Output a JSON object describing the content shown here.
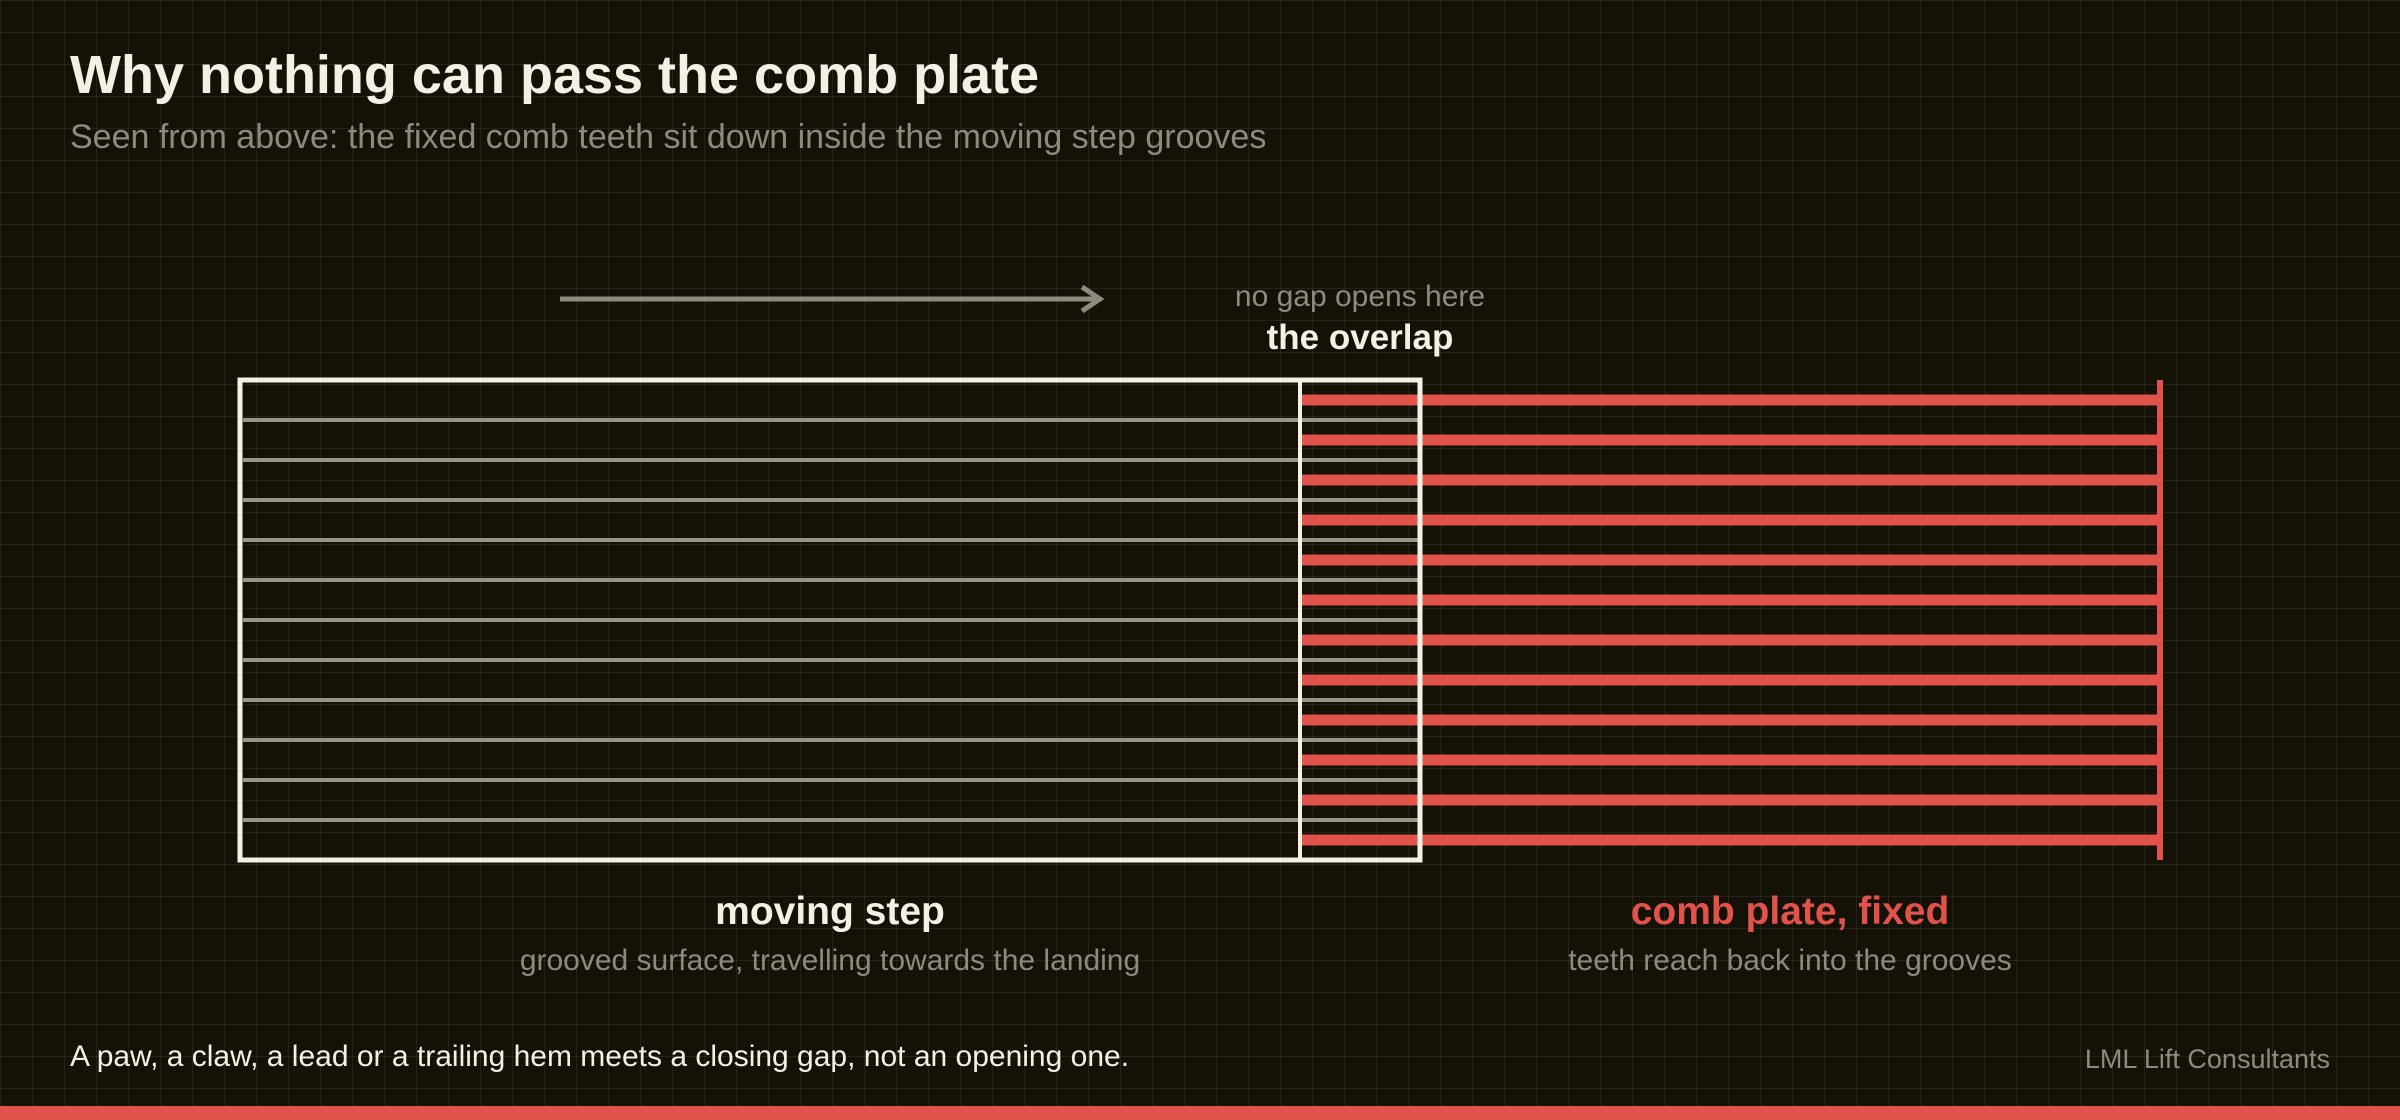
{
  "title": "Why nothing can pass the comb plate",
  "subtitle": "Seen from above: the fixed comb teeth sit down inside the moving step grooves",
  "direction_arrow": {
    "icon": "arrow-right-icon"
  },
  "overlap": {
    "note": "no gap opens here",
    "title": "the overlap"
  },
  "moving_step": {
    "title": "moving step",
    "description": "grooved surface, travelling towards the landing",
    "groove_count": 11
  },
  "comb_plate": {
    "title": "comb plate, fixed",
    "description": "teeth reach back into the grooves",
    "tooth_count": 12
  },
  "footer": {
    "note": "A paw, a claw, a lead or a trailing hem meets a closing gap, not an opening one.",
    "credit": "LML Lift Consultants"
  },
  "colors": {
    "background": "#141207",
    "accent": "#e0524a",
    "text": "#f5f0e4",
    "muted": "#8f8a7e",
    "groove": "#9a9484"
  }
}
